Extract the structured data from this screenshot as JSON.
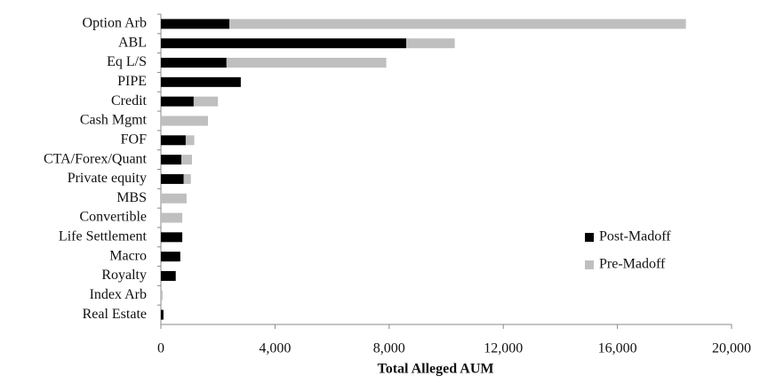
{
  "chart_data": {
    "type": "stacked-bar-horizontal",
    "x_label": "Total Alleged AUM",
    "categories": [
      "Option Arb",
      "ABL",
      "Eq L/S",
      "PIPE",
      "Credit",
      "Cash Mgmt",
      "FOF",
      "CTA/Forex/Quant",
      "Private equity",
      "MBS",
      "Convertible",
      "Life Settlement",
      "Macro",
      "Royalty",
      "Index Arb",
      "Real Estate"
    ],
    "series": [
      {
        "name": "Post-Madoff",
        "color": "#000000",
        "values": [
          2400,
          8600,
          2300,
          2800,
          1150,
          0,
          870,
          720,
          800,
          0,
          0,
          750,
          680,
          520,
          0,
          90
        ]
      },
      {
        "name": "Pre-Madoff",
        "color": "#bfbfbf",
        "values": [
          16000,
          1700,
          5600,
          0,
          850,
          1650,
          300,
          370,
          250,
          900,
          750,
          0,
          0,
          0,
          60,
          0
        ]
      }
    ],
    "xlim": [
      0,
      20000
    ],
    "xticks": [
      0,
      {
        "value": 4000,
        "label": "4,000"
      },
      {
        "value": 8000,
        "label": "8,000"
      },
      {
        "value": 12000,
        "label": "12,000"
      },
      {
        "value": 16000,
        "label": "16,000"
      },
      {
        "value": 20000,
        "label": "20,000"
      }
    ],
    "grid": false,
    "legend_position": "lower-right"
  }
}
